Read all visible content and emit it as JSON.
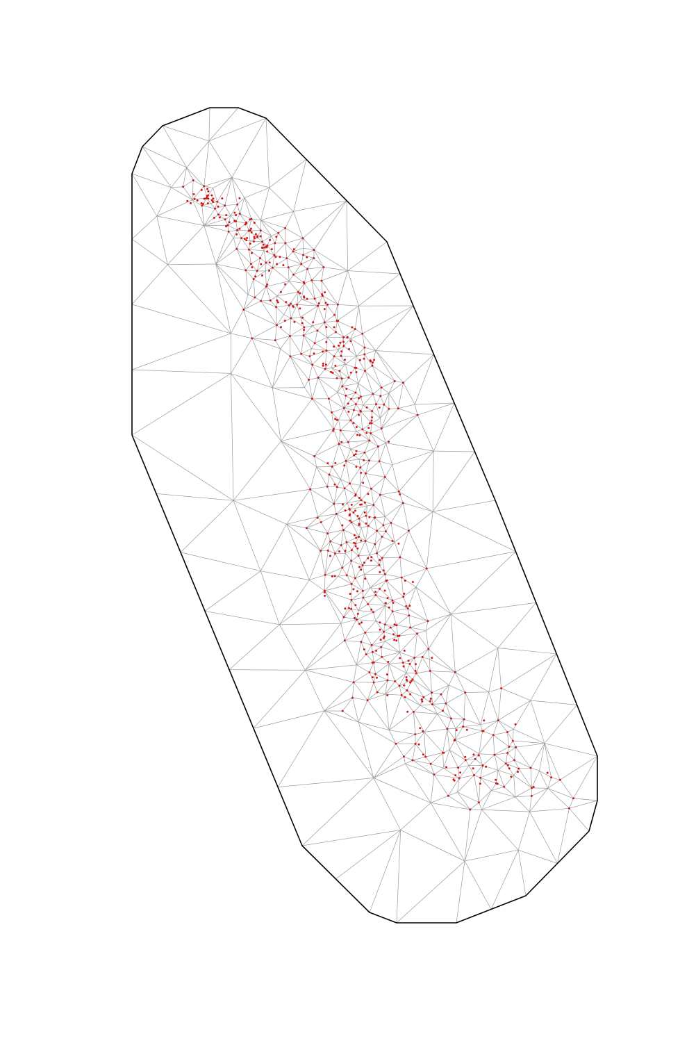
{
  "figure": {
    "kind": "triangulated mesh with observation points",
    "colors": {
      "background": "#ffffff",
      "boundary": "#000000",
      "mesh_edges": "#9a9a9a",
      "points": "#d01818"
    }
  }
}
